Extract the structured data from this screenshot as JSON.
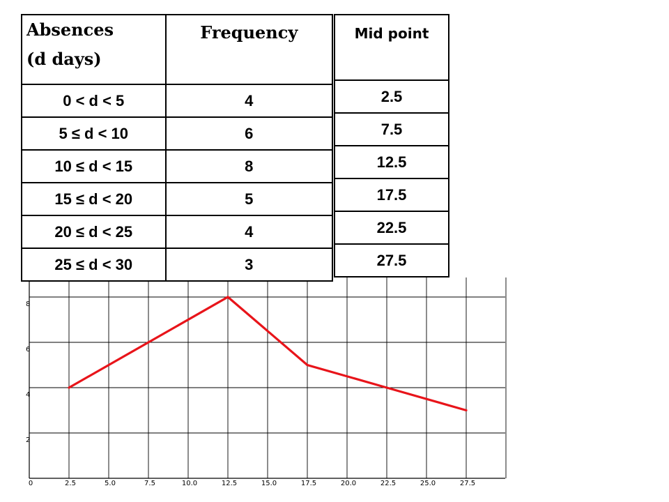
{
  "table": {
    "col1_header_line1": "Absences",
    "col1_header_line2": "(d days)",
    "col2_header": "Frequency",
    "rows": [
      {
        "range": "0 < d < 5",
        "frequency": "4"
      },
      {
        "range": "5 ≤ d < 10",
        "frequency": "6"
      },
      {
        "range": "10 ≤ d < 15",
        "frequency": "8"
      },
      {
        "range": "15 ≤ d < 20",
        "frequency": "5"
      },
      {
        "range": "20 ≤ d < 25",
        "frequency": "4"
      },
      {
        "range": "25 ≤ d < 30",
        "frequency": "3"
      }
    ]
  },
  "midpoints": {
    "header": "Mid point",
    "values": [
      "2.5",
      "7.5",
      "12.5",
      "17.5",
      "22.5",
      "27.5"
    ]
  },
  "chart_data": {
    "type": "line",
    "x": [
      2.5,
      7.5,
      12.5,
      17.5,
      22.5,
      27.5
    ],
    "series": [
      {
        "values": [
          4,
          6,
          8,
          5,
          4,
          3
        ],
        "color": "#e8141a"
      }
    ],
    "xlim": [
      0,
      30
    ],
    "ylim": [
      0,
      8.4
    ],
    "x_ticks": [
      "0",
      "2.5",
      "5.0",
      "7.5",
      "10.0",
      "12.5",
      "15.0",
      "17.5",
      "20.0",
      "22.5",
      "25.0",
      "27.5"
    ],
    "y_ticks": [
      "0",
      "2",
      "4",
      "6",
      "8"
    ],
    "grid": true,
    "title": "",
    "xlabel": "",
    "ylabel": ""
  }
}
